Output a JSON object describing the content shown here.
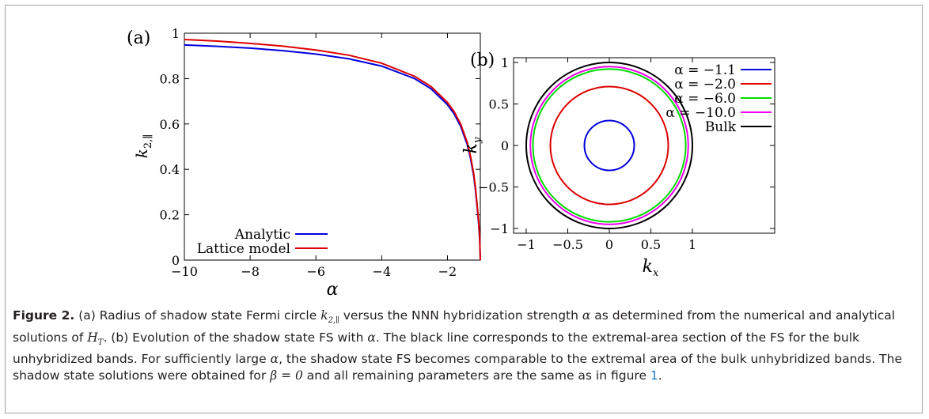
{
  "figure": {
    "caption": {
      "label": "Figure 2.",
      "part1": " (a) Radius of shadow state Fermi circle ",
      "k_sym": "k",
      "k_sub": "2,∥",
      "part2": " versus the NNN hybridization strength ",
      "alpha_sym": "α",
      "part3": " as determined from the numerical and analytical solutions of ",
      "H_sym": "H",
      "H_sub": "T",
      "part4": ". (b) Evolution of the shadow state FS with ",
      "part5": ". The black line corresponds to the extremal-area section of the FS for the bulk unhybridized bands. For sufficiently large ",
      "part6": ", the shadow state FS becomes comparable to the extremal area of the bulk unhybridized bands. The shadow state solutions were obtained for ",
      "beta_eq": "β = 0",
      "part7": " and all remaining parameters are the same as in figure ",
      "ref": "1",
      "end": "."
    }
  },
  "chart_data": [
    {
      "panel_label": "(a)",
      "type": "line",
      "xlabel": "α",
      "ylabel": "k2,∥",
      "xlim": [
        -10,
        -1
      ],
      "ylim": [
        0,
        1
      ],
      "xticks": [
        -10,
        -8,
        -6,
        -4,
        -2
      ],
      "yticks": [
        0,
        0.2,
        0.4,
        0.6,
        0.8,
        1
      ],
      "legend_position": "bottom-center",
      "series": [
        {
          "name": "Analytic",
          "color": "#0000dd",
          "points": [
            [
              -10,
              0.948
            ],
            [
              -9,
              0.942
            ],
            [
              -8,
              0.934
            ],
            [
              -7,
              0.923
            ],
            [
              -6,
              0.908
            ],
            [
              -5,
              0.887
            ],
            [
              -4,
              0.855
            ],
            [
              -3,
              0.8
            ],
            [
              -2.5,
              0.755
            ],
            [
              -2,
              0.685
            ],
            [
              -1.8,
              0.645
            ],
            [
              -1.6,
              0.59
            ],
            [
              -1.4,
              0.51
            ],
            [
              -1.3,
              0.45
            ],
            [
              -1.2,
              0.37
            ],
            [
              -1.15,
              0.31
            ],
            [
              -1.1,
              0.24
            ],
            [
              -1.05,
              0.16
            ],
            [
              -1.02,
              0.09
            ],
            [
              -1.0,
              0.0
            ]
          ]
        },
        {
          "name": "Lattice model",
          "color": "#dd0000",
          "points": [
            [
              -10,
              0.972
            ],
            [
              -9,
              0.965
            ],
            [
              -8,
              0.955
            ],
            [
              -7,
              0.943
            ],
            [
              -6,
              0.926
            ],
            [
              -5,
              0.903
            ],
            [
              -4,
              0.868
            ],
            [
              -3,
              0.81
            ],
            [
              -2.5,
              0.765
            ],
            [
              -2,
              0.695
            ],
            [
              -1.8,
              0.655
            ],
            [
              -1.6,
              0.6
            ],
            [
              -1.4,
              0.52
            ],
            [
              -1.3,
              0.46
            ],
            [
              -1.2,
              0.38
            ],
            [
              -1.15,
              0.32
            ],
            [
              -1.1,
              0.25
            ],
            [
              -1.05,
              0.17
            ],
            [
              -1.02,
              0.1
            ],
            [
              -1.0,
              0.0
            ]
          ]
        }
      ]
    },
    {
      "panel_label": "(b)",
      "type": "line",
      "xlabel": "kx",
      "ylabel": "ky",
      "xlim": [
        -1.1,
        1.1
      ],
      "ylim": [
        -1.1,
        1.1
      ],
      "xticks": [
        -1,
        -0.5,
        0,
        0.5,
        1
      ],
      "yticks": [
        -1,
        -0.5,
        0,
        0.5,
        1
      ],
      "legend_position": "top-right",
      "series": [
        {
          "name": "α = −1.1",
          "color": "#0000dd",
          "radius": 0.3
        },
        {
          "name": "α = −2.0",
          "color": "#dd0000",
          "radius": 0.71
        },
        {
          "name": "α = −6.0",
          "color": "#00dd00",
          "radius": 0.92
        },
        {
          "name": "α = −10.0",
          "color": "#ee00ee",
          "radius": 0.95
        },
        {
          "name": "Bulk",
          "color": "#000000",
          "radius": 1.0
        }
      ]
    }
  ]
}
